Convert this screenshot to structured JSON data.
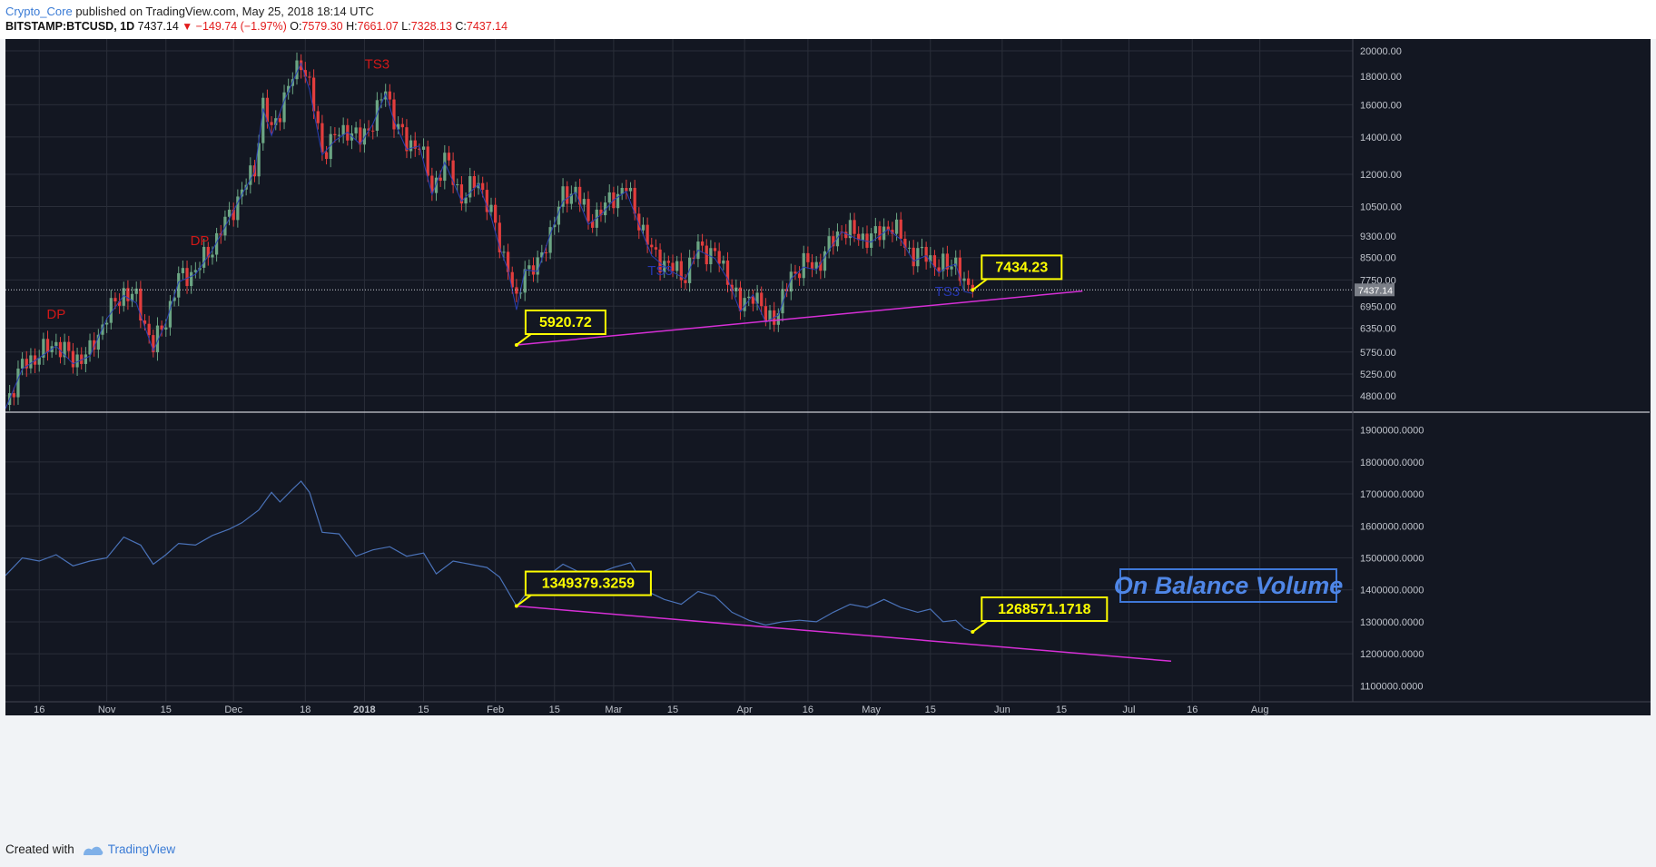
{
  "header": {
    "author": "Crypto_Core",
    "published_text": "published on TradingView.com, May 25, 2018 18:14 UTC",
    "symbol": "BITSTAMP:BTCUSD, 1D",
    "last": "7437.14",
    "change": "−149.74 (−1.97%)",
    "o_label": "O:",
    "o_value": "7579.30",
    "h_label": "H:",
    "h_value": "7661.07",
    "l_label": "L:",
    "l_value": "7328.13",
    "c_label": "C:",
    "c_value": "7437.14"
  },
  "footer": {
    "created_with": "Created with",
    "brand": "TradingView"
  },
  "colors": {
    "background": "#131722",
    "grid": "#2a2e39",
    "up": "#6ba583",
    "down": "#e23d3d",
    "accent_trend": "#d62fd6",
    "obv_line": "#4a72b8",
    "callout_fill": "#ffff00",
    "label_red": "#d01818",
    "label_blue": "#2637b0"
  },
  "chart_data": [
    {
      "type": "candlestick",
      "title": "",
      "xlabel": "",
      "ylabel": "",
      "y_scale": "log",
      "ylim": [
        4500,
        21000
      ],
      "x_range": [
        "2017-10-08",
        "2018-08-23"
      ],
      "grid": true,
      "x_ticks": [
        {
          "date": "2017-10-16",
          "label": "16"
        },
        {
          "date": "2017-11-01",
          "label": "Nov"
        },
        {
          "date": "2017-11-15",
          "label": "15"
        },
        {
          "date": "2017-12-01",
          "label": "Dec"
        },
        {
          "date": "2017-12-18",
          "label": "18"
        },
        {
          "date": "2018-01-01",
          "label": "2018"
        },
        {
          "date": "2018-01-15",
          "label": "15"
        },
        {
          "date": "2018-02-01",
          "label": "Feb"
        },
        {
          "date": "2018-02-15",
          "label": "15"
        },
        {
          "date": "2018-03-01",
          "label": "Mar"
        },
        {
          "date": "2018-03-15",
          "label": "15"
        },
        {
          "date": "2018-04-01",
          "label": "Apr"
        },
        {
          "date": "2018-04-16",
          "label": "16"
        },
        {
          "date": "2018-05-01",
          "label": "May"
        },
        {
          "date": "2018-05-15",
          "label": "15"
        },
        {
          "date": "2018-06-01",
          "label": "Jun"
        },
        {
          "date": "2018-06-15",
          "label": "15"
        },
        {
          "date": "2018-07-01",
          "label": "Jul"
        },
        {
          "date": "2018-07-16",
          "label": "16"
        },
        {
          "date": "2018-08-01",
          "label": "Aug"
        }
      ],
      "y_ticks": [
        "4800.00",
        "5250.00",
        "5750.00",
        "6350.00",
        "6950.00",
        "7750.00",
        "8500.00",
        "9300.00",
        "10500.00",
        "12000.00",
        "14000.00",
        "16000.00",
        "18000.00",
        "20000.00"
      ],
      "last_price_label": "7437.14",
      "last_price": 7437.14,
      "anchors": [
        [
          "2017-10-08",
          4620
        ],
        [
          "2017-10-12",
          5440
        ],
        [
          "2017-10-16",
          5700
        ],
        [
          "2017-10-20",
          5980
        ],
        [
          "2017-10-24",
          5560
        ],
        [
          "2017-10-28",
          5740
        ],
        [
          "2017-11-01",
          6700
        ],
        [
          "2017-11-05",
          7380
        ],
        [
          "2017-11-08",
          7150
        ],
        [
          "2017-11-12",
          5870
        ],
        [
          "2017-11-15",
          6600
        ],
        [
          "2017-11-18",
          7800
        ],
        [
          "2017-11-22",
          8050
        ],
        [
          "2017-11-26",
          8900
        ],
        [
          "2017-11-29",
          9800
        ],
        [
          "2017-12-03",
          11200
        ],
        [
          "2017-12-06",
          12300
        ],
        [
          "2017-12-08",
          16000
        ],
        [
          "2017-12-10",
          14300
        ],
        [
          "2017-12-13",
          16500
        ],
        [
          "2017-12-17",
          19300
        ],
        [
          "2017-12-19",
          17300
        ],
        [
          "2017-12-22",
          13200
        ],
        [
          "2017-12-25",
          14000
        ],
        [
          "2017-12-28",
          14500
        ],
        [
          "2017-12-31",
          13800
        ],
        [
          "2018-01-03",
          15000
        ],
        [
          "2018-01-06",
          17000
        ],
        [
          "2018-01-08",
          15200
        ],
        [
          "2018-01-11",
          13500
        ],
        [
          "2018-01-14",
          13700
        ],
        [
          "2018-01-17",
          11200
        ],
        [
          "2018-01-20",
          12800
        ],
        [
          "2018-01-24",
          10900
        ],
        [
          "2018-01-28",
          11700
        ],
        [
          "2018-01-31",
          10200
        ],
        [
          "2018-02-02",
          9000
        ],
        [
          "2018-02-04",
          8200
        ],
        [
          "2018-02-06",
          6950
        ],
        [
          "2018-02-08",
          8200
        ],
        [
          "2018-02-11",
          8150
        ],
        [
          "2018-02-14",
          9500
        ],
        [
          "2018-02-17",
          10900
        ],
        [
          "2018-02-20",
          11300
        ],
        [
          "2018-02-23",
          9900
        ],
        [
          "2018-02-26",
          10300
        ],
        [
          "2018-03-01",
          10950
        ],
        [
          "2018-03-04",
          11350
        ],
        [
          "2018-03-07",
          9900
        ],
        [
          "2018-03-10",
          8700
        ],
        [
          "2018-03-14",
          8200
        ],
        [
          "2018-03-18",
          7900
        ],
        [
          "2018-03-21",
          8900
        ],
        [
          "2018-03-25",
          8600
        ],
        [
          "2018-03-28",
          7900
        ],
        [
          "2018-03-31",
          6900
        ],
        [
          "2018-04-03",
          7400
        ],
        [
          "2018-04-06",
          6600
        ],
        [
          "2018-04-09",
          6800
        ],
        [
          "2018-04-12",
          7900
        ],
        [
          "2018-04-15",
          8300
        ],
        [
          "2018-04-18",
          8200
        ],
        [
          "2018-04-21",
          8900
        ],
        [
          "2018-04-24",
          9600
        ],
        [
          "2018-04-28",
          9300
        ],
        [
          "2018-05-01",
          9200
        ],
        [
          "2018-05-05",
          9700
        ],
        [
          "2018-05-08",
          9300
        ],
        [
          "2018-05-11",
          8500
        ],
        [
          "2018-05-14",
          8700
        ],
        [
          "2018-05-17",
          8100
        ],
        [
          "2018-05-19",
          8300
        ],
        [
          "2018-05-21",
          8400
        ],
        [
          "2018-05-23",
          7500
        ],
        [
          "2018-05-25",
          7437
        ]
      ],
      "annotations": [
        {
          "text": "DP",
          "date": "2017-10-20",
          "price": 6600,
          "color": "#d01818"
        },
        {
          "text": "DP",
          "date": "2017-11-23",
          "price": 8950,
          "color": "#d01818"
        },
        {
          "text": "TS3",
          "date": "2018-01-04",
          "price": 18600,
          "color": "#d01818"
        },
        {
          "text": "TS3",
          "date": "2018-03-12",
          "price": 7900,
          "color": "#2637b0"
        },
        {
          "text": "TS3",
          "date": "2018-05-19",
          "price": 7250,
          "color": "#2637b0"
        }
      ],
      "callouts": [
        {
          "text": "5920.72",
          "date": "2018-02-06",
          "price": 5920.72
        },
        {
          "text": "7434.23",
          "date": "2018-05-25",
          "price": 7434.23
        }
      ],
      "trendline": [
        [
          "2018-02-06",
          5920.72
        ],
        [
          "2018-06-20",
          7400
        ]
      ]
    },
    {
      "type": "line",
      "title": "",
      "xlabel": "",
      "ylabel": "",
      "ylim": [
        1050000,
        1950000
      ],
      "y_ticks": [
        "1100000.0000",
        "1200000.0000",
        "1300000.0000",
        "1400000.0000",
        "1500000.0000",
        "1600000.0000",
        "1700000.0000",
        "1800000.0000",
        "1900000.0000"
      ],
      "series": [
        {
          "name": "",
          "points": [
            [
              "2017-10-08",
              1445000
            ],
            [
              "2017-10-12",
              1500000
            ],
            [
              "2017-10-16",
              1490000
            ],
            [
              "2017-10-20",
              1510000
            ],
            [
              "2017-10-24",
              1475000
            ],
            [
              "2017-10-28",
              1490000
            ],
            [
              "2017-11-01",
              1500000
            ],
            [
              "2017-11-05",
              1565000
            ],
            [
              "2017-11-09",
              1540000
            ],
            [
              "2017-11-12",
              1480000
            ],
            [
              "2017-11-15",
              1510000
            ],
            [
              "2017-11-18",
              1545000
            ],
            [
              "2017-11-22",
              1540000
            ],
            [
              "2017-11-26",
              1570000
            ],
            [
              "2017-11-30",
              1590000
            ],
            [
              "2017-12-03",
              1610000
            ],
            [
              "2017-12-07",
              1650000
            ],
            [
              "2017-12-10",
              1705000
            ],
            [
              "2017-12-12",
              1675000
            ],
            [
              "2017-12-15",
              1715000
            ],
            [
              "2017-12-17",
              1740000
            ],
            [
              "2017-12-19",
              1705000
            ],
            [
              "2017-12-22",
              1580000
            ],
            [
              "2017-12-26",
              1575000
            ],
            [
              "2017-12-30",
              1505000
            ],
            [
              "2018-01-03",
              1525000
            ],
            [
              "2018-01-07",
              1535000
            ],
            [
              "2018-01-11",
              1505000
            ],
            [
              "2018-01-15",
              1515000
            ],
            [
              "2018-01-18",
              1450000
            ],
            [
              "2018-01-22",
              1490000
            ],
            [
              "2018-01-26",
              1480000
            ],
            [
              "2018-01-30",
              1470000
            ],
            [
              "2018-02-02",
              1440000
            ],
            [
              "2018-02-06",
              1349379
            ],
            [
              "2018-02-09",
              1400000
            ],
            [
              "2018-02-13",
              1440000
            ],
            [
              "2018-02-17",
              1480000
            ],
            [
              "2018-02-21",
              1455000
            ],
            [
              "2018-02-25",
              1450000
            ],
            [
              "2018-03-01",
              1470000
            ],
            [
              "2018-03-05",
              1485000
            ],
            [
              "2018-03-09",
              1395000
            ],
            [
              "2018-03-13",
              1370000
            ],
            [
              "2018-03-17",
              1355000
            ],
            [
              "2018-03-21",
              1395000
            ],
            [
              "2018-03-25",
              1380000
            ],
            [
              "2018-03-29",
              1330000
            ],
            [
              "2018-04-02",
              1305000
            ],
            [
              "2018-04-06",
              1290000
            ],
            [
              "2018-04-10",
              1300000
            ],
            [
              "2018-04-14",
              1305000
            ],
            [
              "2018-04-18",
              1300000
            ],
            [
              "2018-04-22",
              1330000
            ],
            [
              "2018-04-26",
              1355000
            ],
            [
              "2018-04-30",
              1345000
            ],
            [
              "2018-05-04",
              1370000
            ],
            [
              "2018-05-08",
              1345000
            ],
            [
              "2018-05-12",
              1330000
            ],
            [
              "2018-05-15",
              1340000
            ],
            [
              "2018-05-18",
              1300000
            ],
            [
              "2018-05-21",
              1305000
            ],
            [
              "2018-05-23",
              1280000
            ],
            [
              "2018-05-25",
              1268571
            ]
          ]
        }
      ],
      "callouts": [
        {
          "text": "1349379.3259",
          "date": "2018-02-06",
          "value": 1349379.3259
        },
        {
          "text": "1268571.1718",
          "date": "2018-05-25",
          "value": 1268571.1718
        }
      ],
      "trendline": [
        [
          "2018-02-06",
          1349379
        ],
        [
          "2018-07-11",
          1177000
        ]
      ],
      "label_box": "On Balance Volume"
    }
  ]
}
